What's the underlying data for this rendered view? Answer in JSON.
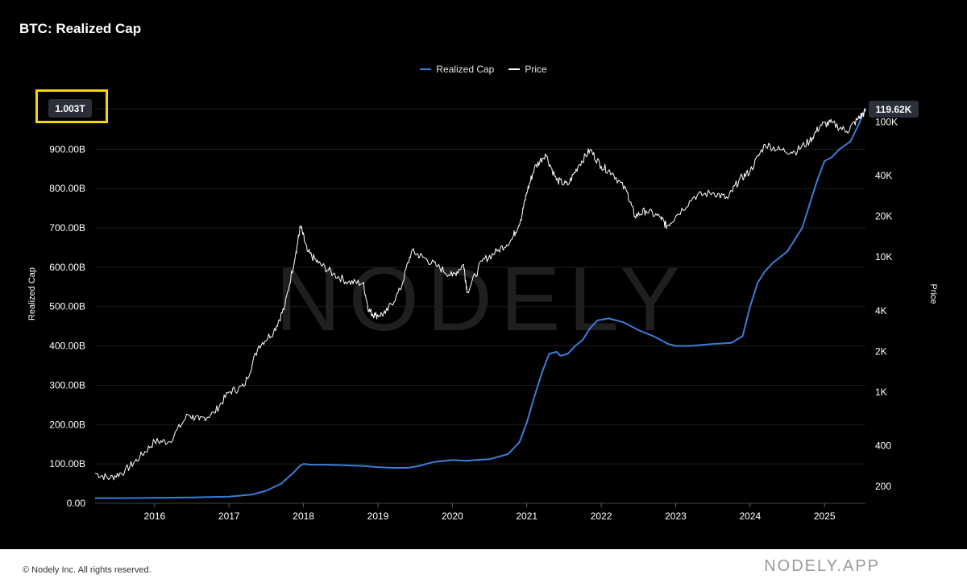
{
  "title": "BTC: Realized Cap",
  "footer": {
    "copyright": "© Nodely Inc. All rights reserved.",
    "brand": "NODELY.APP"
  },
  "watermark": "NODELY",
  "colors": {
    "realized_cap": "#3b7dd8",
    "price": "#ffffff",
    "highlight": "#f5d800",
    "badge": "#2a2f3a"
  },
  "chart_data": {
    "type": "line",
    "legend": [
      "Realized Cap",
      "Price"
    ],
    "legend_position": "top-center",
    "grid": true,
    "x_ticks": [
      "2016",
      "2017",
      "2018",
      "2019",
      "2020",
      "2021",
      "2022",
      "2023",
      "2024",
      "2025"
    ],
    "xlim": [
      2015.2,
      2025.55
    ],
    "y_left": {
      "label": "Realized Cap",
      "ticks": [
        "0.00",
        "100.00B",
        "200.00B",
        "300.00B",
        "400.00B",
        "500.00B",
        "600.00B",
        "700.00B",
        "800.00B",
        "900.00B"
      ],
      "range": [
        0,
        1003
      ],
      "units": "billions USD",
      "current_value_label": "1.003T"
    },
    "y_right": {
      "label": "Price",
      "scale": "log",
      "ticks": [
        "200",
        "400",
        "1K",
        "2K",
        "4K",
        "10K",
        "20K",
        "40K",
        "100K"
      ],
      "range": [
        150,
        125000
      ],
      "current_value_label": "119.62K"
    },
    "series": [
      {
        "name": "Realized Cap",
        "axis": "left",
        "x": [
          2015.2,
          2015.5,
          2016.0,
          2016.5,
          2017.0,
          2017.3,
          2017.5,
          2017.7,
          2017.85,
          2017.95,
          2018.0,
          2018.1,
          2018.3,
          2018.5,
          2018.8,
          2019.0,
          2019.2,
          2019.4,
          2019.55,
          2019.75,
          2020.0,
          2020.2,
          2020.3,
          2020.5,
          2020.75,
          2020.9,
          2021.0,
          2021.1,
          2021.2,
          2021.3,
          2021.4,
          2021.45,
          2021.55,
          2021.65,
          2021.75,
          2021.85,
          2021.95,
          2022.1,
          2022.3,
          2022.5,
          2022.7,
          2022.9,
          2023.0,
          2023.2,
          2023.5,
          2023.75,
          2023.9,
          2024.0,
          2024.1,
          2024.2,
          2024.3,
          2024.5,
          2024.7,
          2024.8,
          2024.9,
          2025.0,
          2025.1,
          2025.2,
          2025.35,
          2025.45,
          2025.55
        ],
        "values": [
          13,
          13,
          14,
          15,
          17,
          22,
          32,
          50,
          75,
          95,
          100,
          98,
          98,
          97,
          95,
          92,
          90,
          90,
          95,
          105,
          110,
          108,
          110,
          112,
          125,
          155,
          205,
          270,
          330,
          380,
          385,
          375,
          380,
          400,
          415,
          445,
          465,
          470,
          460,
          440,
          425,
          405,
          400,
          400,
          405,
          408,
          425,
          500,
          560,
          590,
          610,
          640,
          700,
          760,
          820,
          870,
          880,
          900,
          920,
          960,
          1003
        ]
      },
      {
        "name": "Price",
        "axis": "right",
        "x": [
          2015.2,
          2015.4,
          2015.6,
          2015.8,
          2016.0,
          2016.2,
          2016.45,
          2016.6,
          2016.8,
          2017.0,
          2017.2,
          2017.4,
          2017.6,
          2017.75,
          2017.9,
          2017.96,
          2018.05,
          2018.2,
          2018.4,
          2018.6,
          2018.8,
          2018.88,
          2018.96,
          2019.1,
          2019.3,
          2019.45,
          2019.6,
          2019.8,
          2020.0,
          2020.15,
          2020.2,
          2020.4,
          2020.6,
          2020.8,
          2020.92,
          2021.0,
          2021.1,
          2021.25,
          2021.4,
          2021.55,
          2021.7,
          2021.85,
          2022.0,
          2022.15,
          2022.35,
          2022.45,
          2022.6,
          2022.8,
          2022.88,
          2023.0,
          2023.25,
          2023.5,
          2023.7,
          2023.85,
          2024.0,
          2024.2,
          2024.4,
          2024.6,
          2024.8,
          2024.95,
          2025.1,
          2025.3,
          2025.45,
          2025.55
        ],
        "values": [
          250,
          230,
          260,
          330,
          430,
          430,
          680,
          620,
          700,
          1000,
          1100,
          2200,
          2800,
          4300,
          11000,
          17000,
          11000,
          9000,
          7500,
          6500,
          6400,
          4000,
          3700,
          3800,
          5700,
          11000,
          10000,
          8500,
          7200,
          8800,
          5500,
          9300,
          11000,
          13500,
          19000,
          30000,
          45000,
          58000,
          37000,
          34000,
          48000,
          62000,
          47000,
          42000,
          30000,
          20000,
          22000,
          19500,
          16800,
          20000,
          28000,
          30000,
          27000,
          37000,
          43000,
          68000,
          62000,
          60000,
          72000,
          95000,
          98000,
          85000,
          105000,
          119620
        ]
      }
    ]
  }
}
